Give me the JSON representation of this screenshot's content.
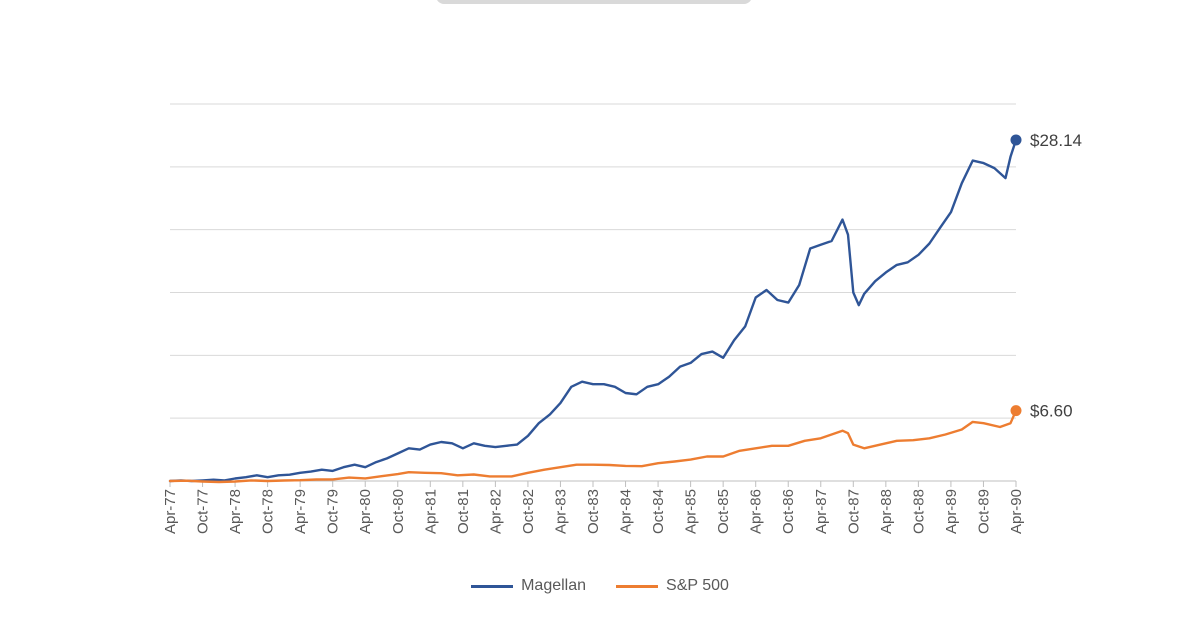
{
  "chart_data": {
    "type": "line",
    "title": "",
    "xlabel": "",
    "ylabel": "",
    "ylim": [
      1,
      31
    ],
    "grid": true,
    "legend_position": "bottom",
    "x_ticks": [
      "Apr-77",
      "Oct-77",
      "Apr-78",
      "Oct-78",
      "Apr-79",
      "Oct-79",
      "Apr-80",
      "Oct-80",
      "Apr-81",
      "Oct-81",
      "Apr-82",
      "Oct-82",
      "Apr-83",
      "Oct-83",
      "Apr-84",
      "Oct-84",
      "Apr-85",
      "Oct-85",
      "Apr-86",
      "Oct-86",
      "Apr-87",
      "Oct-87",
      "Apr-88",
      "Oct-88",
      "Apr-89",
      "Oct-89",
      "Apr-90"
    ],
    "series": [
      {
        "name": "Magellan",
        "color": "#2f5597",
        "end_label": "$28.14",
        "points": [
          [
            "1977-04",
            1.0
          ],
          [
            "1977-06",
            1.05
          ],
          [
            "1977-08",
            1.0
          ],
          [
            "1977-10",
            1.05
          ],
          [
            "1977-12",
            1.1
          ],
          [
            "1978-02",
            1.05
          ],
          [
            "1978-04",
            1.2
          ],
          [
            "1978-06",
            1.3
          ],
          [
            "1978-08",
            1.45
          ],
          [
            "1978-10",
            1.3
          ],
          [
            "1978-12",
            1.45
          ],
          [
            "1979-02",
            1.5
          ],
          [
            "1979-04",
            1.65
          ],
          [
            "1979-06",
            1.75
          ],
          [
            "1979-08",
            1.9
          ],
          [
            "1979-10",
            1.8
          ],
          [
            "1979-12",
            2.1
          ],
          [
            "1980-02",
            2.3
          ],
          [
            "1980-04",
            2.1
          ],
          [
            "1980-06",
            2.5
          ],
          [
            "1980-08",
            2.8
          ],
          [
            "1980-10",
            3.2
          ],
          [
            "1980-12",
            3.6
          ],
          [
            "1981-02",
            3.5
          ],
          [
            "1981-04",
            3.9
          ],
          [
            "1981-06",
            4.1
          ],
          [
            "1981-08",
            4.0
          ],
          [
            "1981-10",
            3.6
          ],
          [
            "1981-12",
            4.0
          ],
          [
            "1982-02",
            3.8
          ],
          [
            "1982-04",
            3.7
          ],
          [
            "1982-06",
            3.8
          ],
          [
            "1982-08",
            3.9
          ],
          [
            "1982-10",
            4.6
          ],
          [
            "1982-12",
            5.6
          ],
          [
            "1983-02",
            6.3
          ],
          [
            "1983-04",
            7.2
          ],
          [
            "1983-06",
            8.5
          ],
          [
            "1983-08",
            8.9
          ],
          [
            "1983-10",
            8.7
          ],
          [
            "1983-12",
            8.7
          ],
          [
            "1984-02",
            8.5
          ],
          [
            "1984-04",
            8.0
          ],
          [
            "1984-06",
            7.9
          ],
          [
            "1984-08",
            8.5
          ],
          [
            "1984-10",
            8.7
          ],
          [
            "1984-12",
            9.3
          ],
          [
            "1985-02",
            10.1
          ],
          [
            "1985-04",
            10.4
          ],
          [
            "1985-06",
            11.1
          ],
          [
            "1985-08",
            11.3
          ],
          [
            "1985-10",
            10.8
          ],
          [
            "1985-12",
            12.2
          ],
          [
            "1986-02",
            13.3
          ],
          [
            "1986-04",
            15.6
          ],
          [
            "1986-06",
            16.2
          ],
          [
            "1986-08",
            15.4
          ],
          [
            "1986-10",
            15.2
          ],
          [
            "1986-12",
            16.6
          ],
          [
            "1987-02",
            19.5
          ],
          [
            "1987-04",
            19.8
          ],
          [
            "1987-06",
            20.1
          ],
          [
            "1987-08",
            21.8
          ],
          [
            "1987-09",
            20.6
          ],
          [
            "1987-10",
            16.0
          ],
          [
            "1987-11",
            15.0
          ],
          [
            "1987-12",
            15.9
          ],
          [
            "1988-02",
            16.9
          ],
          [
            "1988-04",
            17.6
          ],
          [
            "1988-06",
            18.2
          ],
          [
            "1988-08",
            18.4
          ],
          [
            "1988-10",
            19.0
          ],
          [
            "1988-12",
            19.9
          ],
          [
            "1989-02",
            21.2
          ],
          [
            "1989-04",
            22.4
          ],
          [
            "1989-06",
            24.7
          ],
          [
            "1989-08",
            26.5
          ],
          [
            "1989-10",
            26.3
          ],
          [
            "1989-12",
            25.9
          ],
          [
            "1990-02",
            25.1
          ],
          [
            "1990-03",
            26.8
          ],
          [
            "1990-04",
            28.14
          ]
        ]
      },
      {
        "name": "S&P 500",
        "color": "#ed7d31",
        "end_label": "$6.60",
        "points": [
          [
            "1977-04",
            1.0
          ],
          [
            "1977-07",
            1.02
          ],
          [
            "1977-10",
            0.96
          ],
          [
            "1978-01",
            0.92
          ],
          [
            "1978-04",
            0.96
          ],
          [
            "1978-07",
            1.05
          ],
          [
            "1978-10",
            1.0
          ],
          [
            "1979-01",
            1.04
          ],
          [
            "1979-04",
            1.06
          ],
          [
            "1979-07",
            1.12
          ],
          [
            "1979-10",
            1.13
          ],
          [
            "1980-01",
            1.27
          ],
          [
            "1980-04",
            1.21
          ],
          [
            "1980-07",
            1.38
          ],
          [
            "1980-10",
            1.55
          ],
          [
            "1980-12",
            1.7
          ],
          [
            "1981-03",
            1.65
          ],
          [
            "1981-06",
            1.62
          ],
          [
            "1981-09",
            1.45
          ],
          [
            "1981-12",
            1.52
          ],
          [
            "1982-03",
            1.37
          ],
          [
            "1982-07",
            1.37
          ],
          [
            "1982-10",
            1.65
          ],
          [
            "1983-01",
            1.9
          ],
          [
            "1983-04",
            2.1
          ],
          [
            "1983-07",
            2.3
          ],
          [
            "1983-10",
            2.3
          ],
          [
            "1984-01",
            2.27
          ],
          [
            "1984-04",
            2.2
          ],
          [
            "1984-07",
            2.18
          ],
          [
            "1984-10",
            2.42
          ],
          [
            "1985-01",
            2.55
          ],
          [
            "1985-04",
            2.7
          ],
          [
            "1985-07",
            2.95
          ],
          [
            "1985-10",
            2.95
          ],
          [
            "1986-01",
            3.4
          ],
          [
            "1986-04",
            3.6
          ],
          [
            "1986-07",
            3.8
          ],
          [
            "1986-10",
            3.8
          ],
          [
            "1987-01",
            4.2
          ],
          [
            "1987-04",
            4.4
          ],
          [
            "1987-08",
            5.0
          ],
          [
            "1987-09",
            4.8
          ],
          [
            "1987-10",
            3.9
          ],
          [
            "1987-12",
            3.6
          ],
          [
            "1988-03",
            3.9
          ],
          [
            "1988-06",
            4.2
          ],
          [
            "1988-09",
            4.25
          ],
          [
            "1988-12",
            4.4
          ],
          [
            "1989-03",
            4.7
          ],
          [
            "1989-06",
            5.1
          ],
          [
            "1989-08",
            5.7
          ],
          [
            "1989-10",
            5.6
          ],
          [
            "1990-01",
            5.3
          ],
          [
            "1990-03",
            5.6
          ],
          [
            "1990-04",
            6.6
          ]
        ]
      }
    ]
  }
}
